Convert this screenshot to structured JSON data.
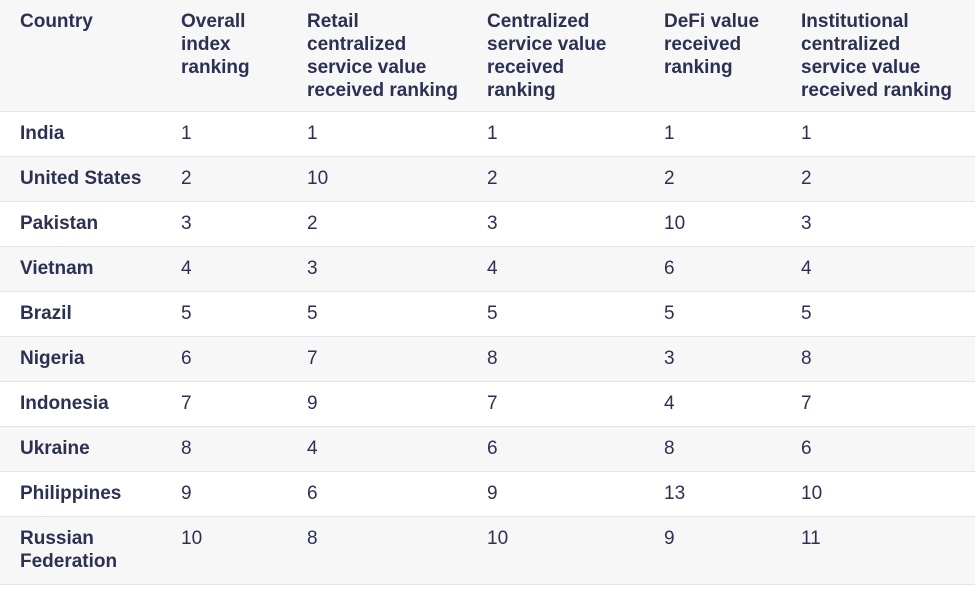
{
  "table": {
    "header": [
      "Country",
      "Overall index ranking",
      "Retail centralized service value received ranking",
      "Centralized service value received ranking",
      "DeFi value received ranking",
      "Institutional centralized service value received ranking"
    ],
    "rows": [
      [
        "India",
        1,
        1,
        1,
        1,
        1
      ],
      [
        "United States",
        2,
        10,
        2,
        2,
        2
      ],
      [
        "Pakistan",
        3,
        2,
        3,
        10,
        3
      ],
      [
        "Vietnam",
        4,
        3,
        4,
        6,
        4
      ],
      [
        "Brazil",
        5,
        5,
        5,
        5,
        5
      ],
      [
        "Nigeria",
        6,
        7,
        8,
        3,
        8
      ],
      [
        "Indonesia",
        7,
        9,
        7,
        4,
        7
      ],
      [
        "Ukraine",
        8,
        4,
        6,
        8,
        6
      ],
      [
        "Philippines",
        9,
        6,
        9,
        13,
        10
      ],
      [
        "Russian Federation",
        10,
        8,
        10,
        9,
        11
      ]
    ]
  }
}
